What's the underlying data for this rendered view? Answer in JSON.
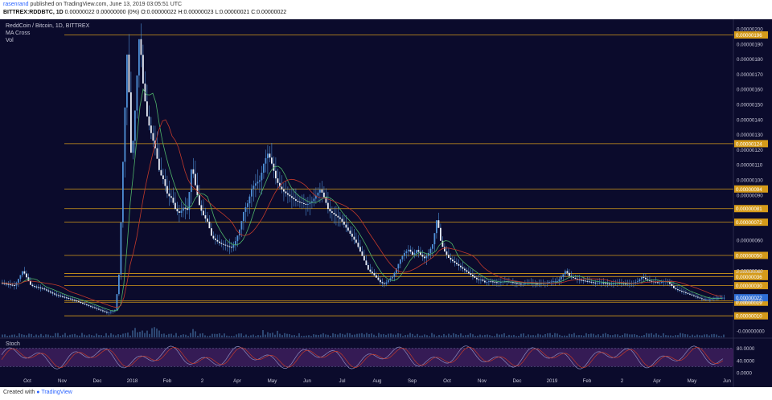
{
  "header": {
    "author": "rasenrand",
    "published_text": "published on TradingView.com, June 13, 2019 03:05:51 UTC",
    "symbol": "BITTREX:RDDBTC, 1D",
    "ohlc": "0.00000022 0.00000000 (0%) O:0.00000022 H:0.00000023 L:0.00000021 C:0.00000022"
  },
  "legend": {
    "title": "ReddCoin / Bitcoin, 1D, BITTREX",
    "indicator1": "MA Cross",
    "indicator2": "Vol",
    "oscillator": "Stoch"
  },
  "footer": {
    "created_with": "Created with",
    "brand": "TradingView"
  },
  "colors": {
    "background": "#0b0b2c",
    "candle_body": "#4e8fd6",
    "level_line": "#d49a1a",
    "level_label_bg": "#d49a1a",
    "last_price_bg": "#2f6fd6",
    "ma_short": "#4fb46a",
    "ma_long": "#c0392b",
    "stoch_k": "#8c8cbf",
    "stoch_d": "#c0392b",
    "stoch_band": "#3a1d5a"
  },
  "chart_data": {
    "type": "candlestick",
    "price_axis": {
      "ticks": [
        "0.00000200",
        "0.00000190",
        "0.00000180",
        "0.00000170",
        "0.00000160",
        "0.00000150",
        "0.00000140",
        "0.00000130",
        "0.00000120",
        "0.00000110",
        "0.00000100",
        "0.00000090",
        "0.00000060",
        "0.00000040",
        "0.00000020",
        "-0.00000000"
      ],
      "tick_values": [
        200,
        190,
        180,
        170,
        160,
        150,
        140,
        130,
        120,
        110,
        100,
        90,
        60,
        40,
        20,
        0
      ],
      "range": [
        0,
        200
      ]
    },
    "levels": [
      {
        "label": "0.00000196",
        "value": 196
      },
      {
        "label": "0.00000124",
        "value": 124
      },
      {
        "label": "0.00000094",
        "value": 94
      },
      {
        "label": "0.00000081",
        "value": 81
      },
      {
        "label": "0.00000072",
        "value": 72
      },
      {
        "label": "0.00000050",
        "value": 50
      },
      {
        "label": "0.00000038",
        "value": 38
      },
      {
        "label": "0.00000036",
        "value": 36
      },
      {
        "label": "0.00000030",
        "value": 30
      },
      {
        "label": "0.00000020",
        "value": 20
      },
      {
        "label": "0.00000019",
        "value": 19
      },
      {
        "label": "0.00000010",
        "value": 10
      }
    ],
    "last_price": {
      "label": "0.00000022",
      "value": 22
    },
    "time_axis": [
      "Oct",
      "Nov",
      "Dec",
      "2018",
      "Feb",
      "2",
      "Apr",
      "May",
      "Jun",
      "Jul",
      "Aug",
      "Sep",
      "Oct",
      "Nov",
      "Dec",
      "2019",
      "Feb",
      "2",
      "Apr",
      "May",
      "Jun"
    ],
    "price_path": [
      [
        0,
        32
      ],
      [
        10,
        31
      ],
      [
        20,
        30
      ],
      [
        30,
        40
      ],
      [
        40,
        30
      ],
      [
        55,
        28
      ],
      [
        70,
        24
      ],
      [
        90,
        21
      ],
      [
        105,
        18
      ],
      [
        120,
        15
      ],
      [
        135,
        12
      ],
      [
        145,
        14
      ],
      [
        150,
        40
      ],
      [
        155,
        120
      ],
      [
        160,
        190
      ],
      [
        165,
        110
      ],
      [
        170,
        150
      ],
      [
        175,
        198
      ],
      [
        180,
        160
      ],
      [
        185,
        140
      ],
      [
        190,
        130
      ],
      [
        195,
        120
      ],
      [
        200,
        105
      ],
      [
        205,
        100
      ],
      [
        210,
        90
      ],
      [
        215,
        88
      ],
      [
        220,
        80
      ],
      [
        225,
        78
      ],
      [
        230,
        82
      ],
      [
        235,
        80
      ],
      [
        240,
        110
      ],
      [
        245,
        95
      ],
      [
        250,
        82
      ],
      [
        255,
        76
      ],
      [
        260,
        72
      ],
      [
        265,
        62
      ],
      [
        270,
        60
      ],
      [
        275,
        58
      ],
      [
        280,
        57
      ],
      [
        285,
        56
      ],
      [
        290,
        55
      ],
      [
        295,
        60
      ],
      [
        300,
        68
      ],
      [
        305,
        80
      ],
      [
        310,
        85
      ],
      [
        315,
        95
      ],
      [
        320,
        98
      ],
      [
        325,
        100
      ],
      [
        330,
        112
      ],
      [
        335,
        118
      ],
      [
        340,
        110
      ],
      [
        345,
        100
      ],
      [
        350,
        95
      ],
      [
        355,
        92
      ],
      [
        360,
        90
      ],
      [
        365,
        88
      ],
      [
        370,
        86
      ],
      [
        375,
        85
      ],
      [
        380,
        84
      ],
      [
        385,
        84
      ],
      [
        390,
        86
      ],
      [
        395,
        90
      ],
      [
        400,
        94
      ],
      [
        405,
        88
      ],
      [
        410,
        80
      ],
      [
        415,
        78
      ],
      [
        420,
        76
      ],
      [
        425,
        74
      ],
      [
        430,
        70
      ],
      [
        435,
        66
      ],
      [
        440,
        62
      ],
      [
        445,
        58
      ],
      [
        450,
        52
      ],
      [
        455,
        46
      ],
      [
        460,
        40
      ],
      [
        465,
        38
      ],
      [
        470,
        35
      ],
      [
        475,
        32
      ],
      [
        480,
        31
      ],
      [
        485,
        34
      ],
      [
        490,
        36
      ],
      [
        495,
        42
      ],
      [
        500,
        48
      ],
      [
        505,
        52
      ],
      [
        510,
        54
      ],
      [
        515,
        50
      ],
      [
        520,
        54
      ],
      [
        525,
        50
      ],
      [
        530,
        48
      ],
      [
        535,
        52
      ],
      [
        540,
        58
      ],
      [
        545,
        75
      ],
      [
        550,
        58
      ],
      [
        555,
        52
      ],
      [
        560,
        48
      ],
      [
        565,
        46
      ],
      [
        570,
        44
      ],
      [
        575,
        42
      ],
      [
        580,
        40
      ],
      [
        585,
        38
      ],
      [
        590,
        36
      ],
      [
        595,
        34
      ],
      [
        600,
        34
      ],
      [
        605,
        32
      ],
      [
        610,
        33
      ],
      [
        620,
        32
      ],
      [
        630,
        33
      ],
      [
        640,
        32
      ],
      [
        650,
        31
      ],
      [
        660,
        32
      ],
      [
        670,
        31
      ],
      [
        680,
        32
      ],
      [
        690,
        33
      ],
      [
        695,
        33
      ],
      [
        700,
        36
      ],
      [
        705,
        40
      ],
      [
        710,
        36
      ],
      [
        715,
        35
      ],
      [
        720,
        34
      ],
      [
        730,
        33
      ],
      [
        740,
        32
      ],
      [
        750,
        32
      ],
      [
        760,
        31
      ],
      [
        770,
        32
      ],
      [
        780,
        31
      ],
      [
        790,
        32
      ],
      [
        795,
        33
      ],
      [
        800,
        36
      ],
      [
        805,
        34
      ],
      [
        810,
        33
      ],
      [
        820,
        32
      ],
      [
        830,
        33
      ],
      [
        835,
        31
      ],
      [
        840,
        28
      ],
      [
        845,
        27
      ],
      [
        850,
        26
      ],
      [
        855,
        25
      ],
      [
        860,
        24
      ],
      [
        865,
        23
      ],
      [
        870,
        22
      ],
      [
        875,
        21
      ],
      [
        880,
        21
      ],
      [
        885,
        21
      ],
      [
        890,
        22
      ],
      [
        895,
        22
      ],
      [
        900,
        22
      ]
    ],
    "stoch_axis": {
      "ticks": [
        "80.0000",
        "40.0000",
        "0.0000"
      ],
      "tick_values": [
        80,
        40,
        0
      ],
      "range": [
        0,
        100
      ]
    }
  }
}
